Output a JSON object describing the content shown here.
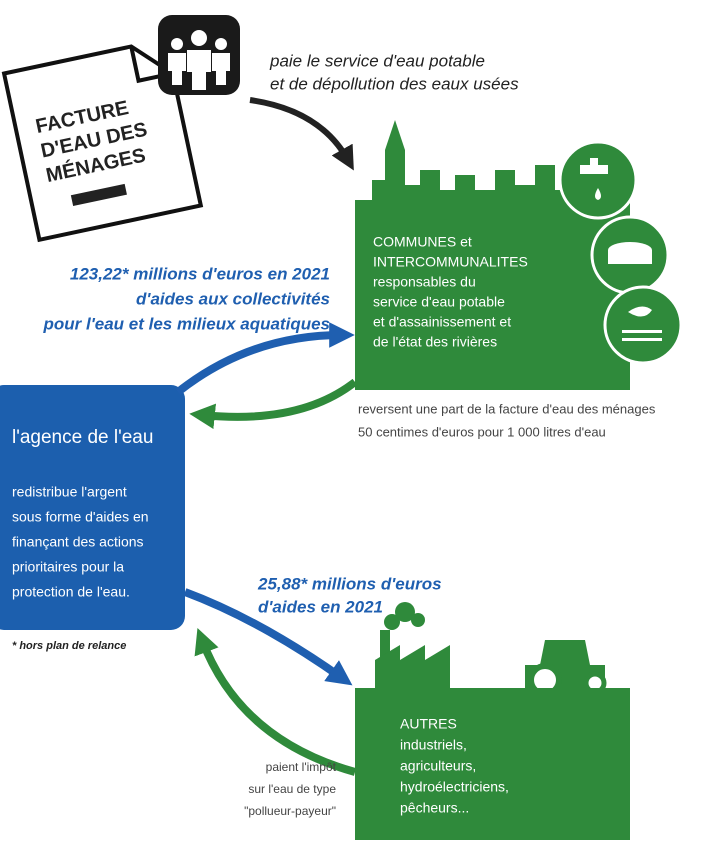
{
  "bill": {
    "title_lines": [
      "FACTURE",
      "D'EAU DES",
      "MÉNAGES"
    ],
    "caption_lines": [
      "paie le service d'eau potable",
      "et de dépollution des eaux usées"
    ]
  },
  "communes": {
    "lines": [
      "COMMUNES et",
      "INTERCOMMUNALITES",
      "responsables du",
      "service d'eau potable",
      "et d'assainissement et",
      "de l'état des rivières"
    ],
    "note_lines": [
      "reversent une part de la facture d'eau des ménages",
      "50 centimes d'euros pour 1 000 litres d'eau"
    ]
  },
  "aid_collectivites": {
    "lines": [
      "123,22* millions d'euros en 2021",
      "d'aides aux collectivités",
      "pour l'eau et les milieux aquatiques"
    ]
  },
  "agence": {
    "title": "l'agence de l'eau",
    "lines": [
      "redistribue l'argent",
      "sous forme d'aides en",
      "finançant des actions",
      "prioritaires pour la",
      "protection de l'eau."
    ],
    "footnote": "* hors plan de relance"
  },
  "aid_autres": {
    "lines": [
      "25,88* millions d'euros",
      "d'aides en 2021"
    ]
  },
  "autres": {
    "lines": [
      "AUTRES",
      "industriels,",
      "agriculteurs,",
      "hydroélectriciens,",
      "pêcheurs..."
    ],
    "tax_lines": [
      "paient l'impôt",
      "sur l'eau de type",
      "\"pollueur-payeur\""
    ]
  }
}
